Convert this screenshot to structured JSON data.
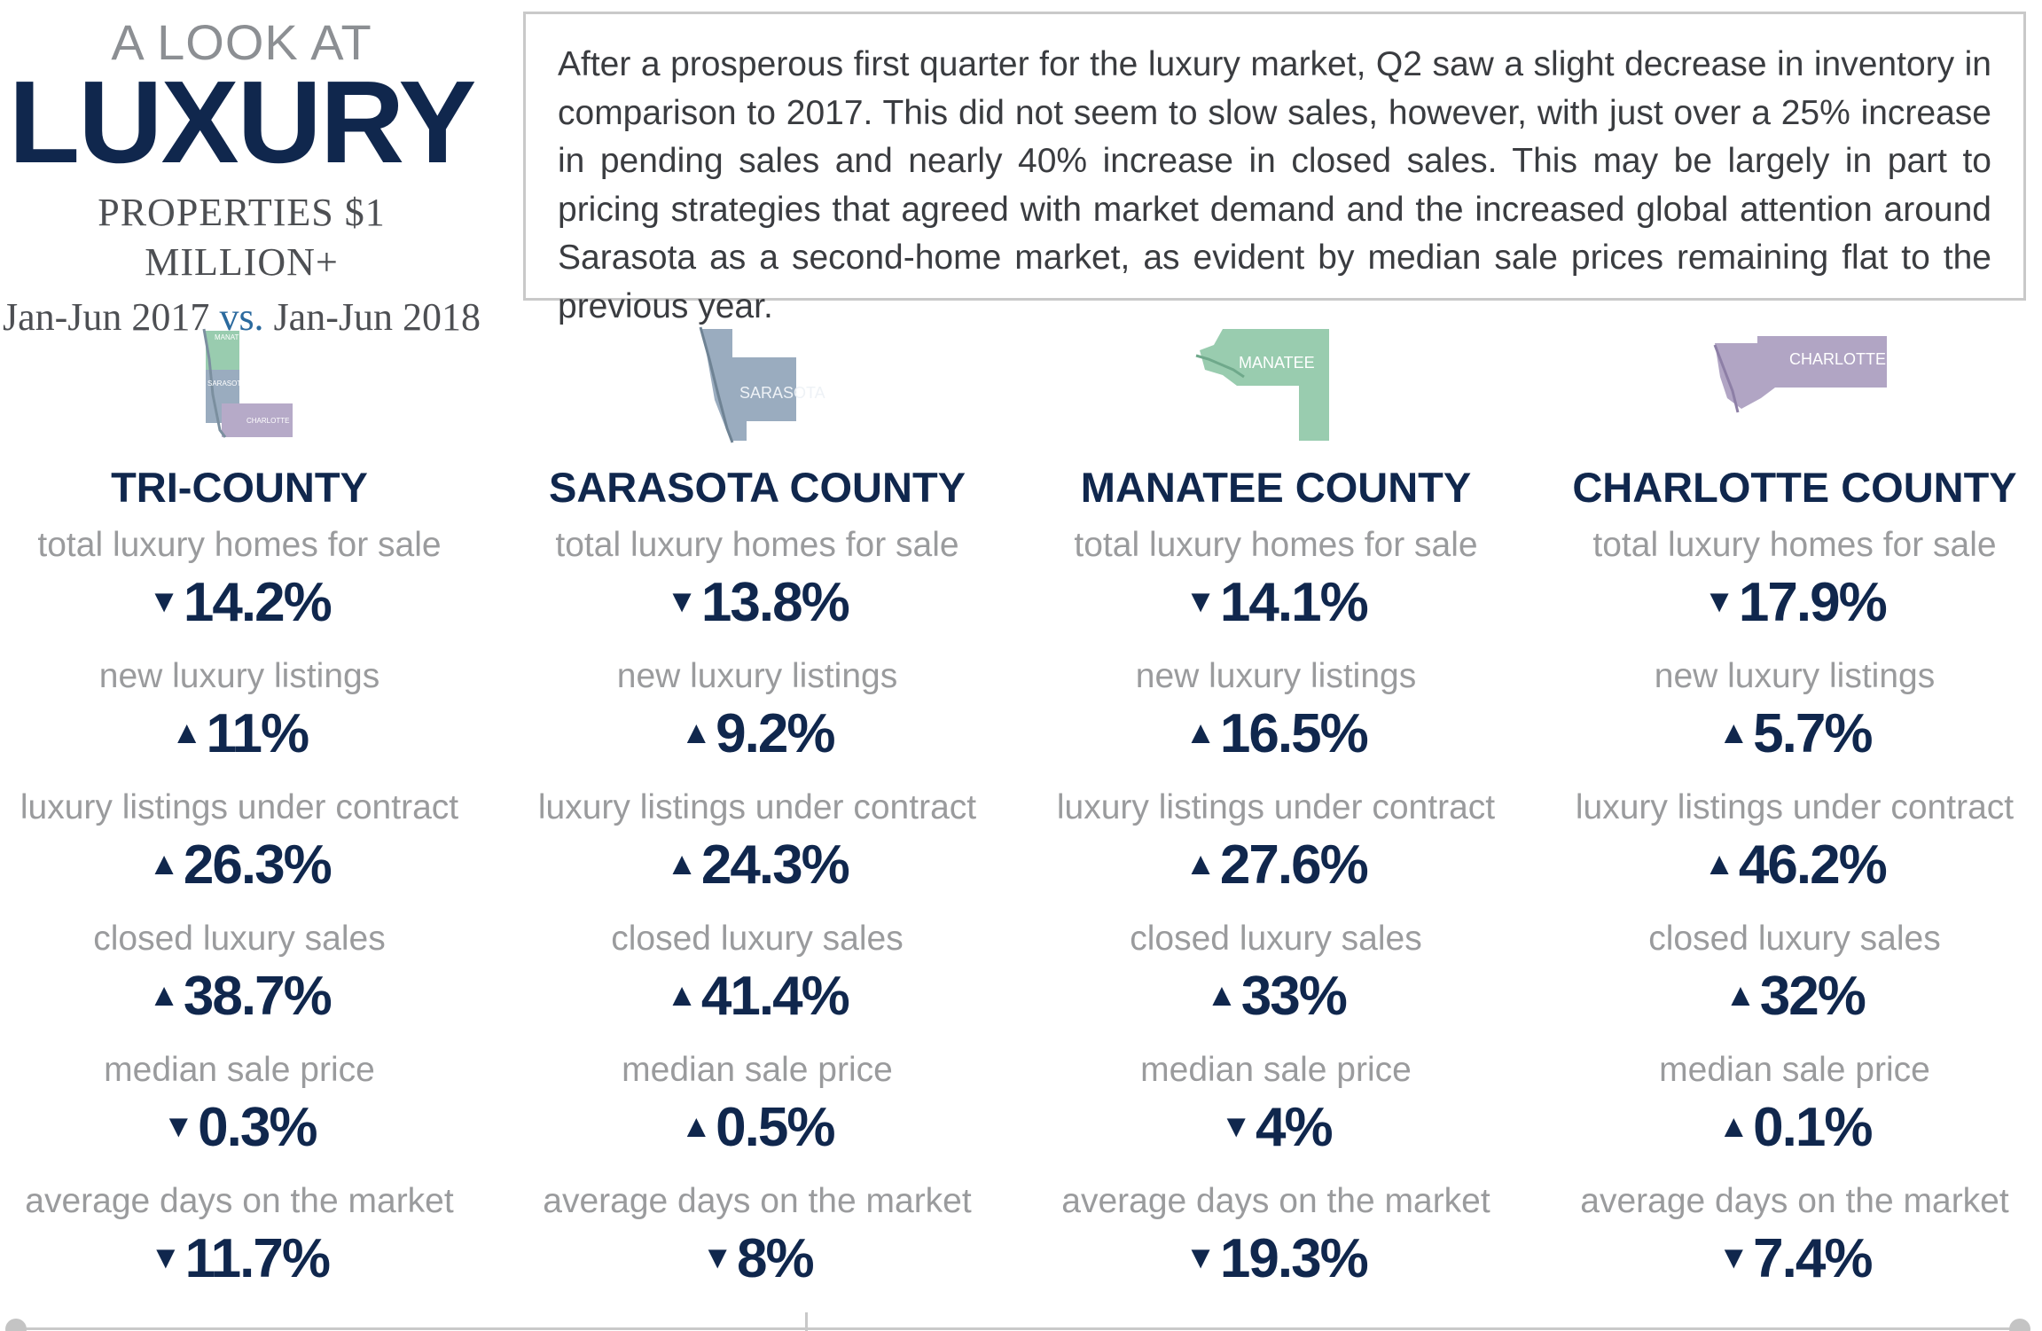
{
  "header": {
    "kicker": "A LOOK AT",
    "title": "LUXURY",
    "subtitle": "PROPERTIES $1 MILLION+",
    "period_a": "Jan-Jun 2017",
    "vs": "vs.",
    "period_b": "Jan-Jun 2018"
  },
  "summary": "After a prosperous first quarter for the luxury market, Q2 saw a slight decrease in inventory in comparison to 2017. This did not seem to slow sales, however, with just over a 25% increase in pending sales and nearly 40% increase in closed sales. This may be largely in part to pricing strategies that agreed with market demand and the increased global attention around Sarasota as a second-home market, as evident by median sale prices remaining flat to the previous year.",
  "colors": {
    "navy": "#10274d",
    "gray_label": "#9a9b9d",
    "sarasota": "#8fa3b8",
    "manatee": "#8ec6a6",
    "charlotte": "#a99bbe"
  },
  "counties": [
    {
      "name": "TRI-COUNTY",
      "map_labels": [
        "MANATEE",
        "SARASOTA",
        "CHARLOTTE"
      ],
      "metrics": [
        {
          "label": "total luxury homes for sale",
          "direction": "down",
          "value": "14.2%"
        },
        {
          "label": "new luxury listings",
          "direction": "up",
          "value": "11%"
        },
        {
          "label": "luxury listings under contract",
          "direction": "up",
          "value": "26.3%"
        },
        {
          "label": "closed luxury sales",
          "direction": "up",
          "value": "38.7%"
        },
        {
          "label": "median sale price",
          "direction": "down",
          "value": "0.3%"
        },
        {
          "label": "average days on the market",
          "direction": "down",
          "value": "11.7%"
        }
      ]
    },
    {
      "name": "SARASOTA COUNTY",
      "map_label": "SARASOTA",
      "metrics": [
        {
          "label": "total luxury homes for sale",
          "direction": "down",
          "value": "13.8%"
        },
        {
          "label": "new luxury listings",
          "direction": "up",
          "value": "9.2%"
        },
        {
          "label": "luxury listings under contract",
          "direction": "up",
          "value": "24.3%"
        },
        {
          "label": "closed luxury sales",
          "direction": "up",
          "value": "41.4%"
        },
        {
          "label": "median sale price",
          "direction": "up",
          "value": "0.5%"
        },
        {
          "label": "average days on the market",
          "direction": "down",
          "value": "8%"
        }
      ]
    },
    {
      "name": "MANATEE COUNTY",
      "map_label": "MANATEE",
      "metrics": [
        {
          "label": "total luxury homes for sale",
          "direction": "down",
          "value": "14.1%"
        },
        {
          "label": "new luxury listings",
          "direction": "up",
          "value": "16.5%"
        },
        {
          "label": "luxury listings under contract",
          "direction": "up",
          "value": "27.6%"
        },
        {
          "label": "closed luxury sales",
          "direction": "up",
          "value": "33%"
        },
        {
          "label": "median sale price",
          "direction": "down",
          "value": "4%"
        },
        {
          "label": "average days on the market",
          "direction": "down",
          "value": "19.3%"
        }
      ]
    },
    {
      "name": "CHARLOTTE COUNTY",
      "map_label": "CHARLOTTE",
      "metrics": [
        {
          "label": "total luxury homes for sale",
          "direction": "down",
          "value": "17.9%"
        },
        {
          "label": "new luxury listings",
          "direction": "up",
          "value": "5.7%"
        },
        {
          "label": "luxury listings under contract",
          "direction": "up",
          "value": "46.2%"
        },
        {
          "label": "closed luxury sales",
          "direction": "up",
          "value": "32%"
        },
        {
          "label": "median sale price",
          "direction": "up",
          "value": "0.1%"
        },
        {
          "label": "average days on the market",
          "direction": "down",
          "value": "7.4%"
        }
      ]
    }
  ]
}
